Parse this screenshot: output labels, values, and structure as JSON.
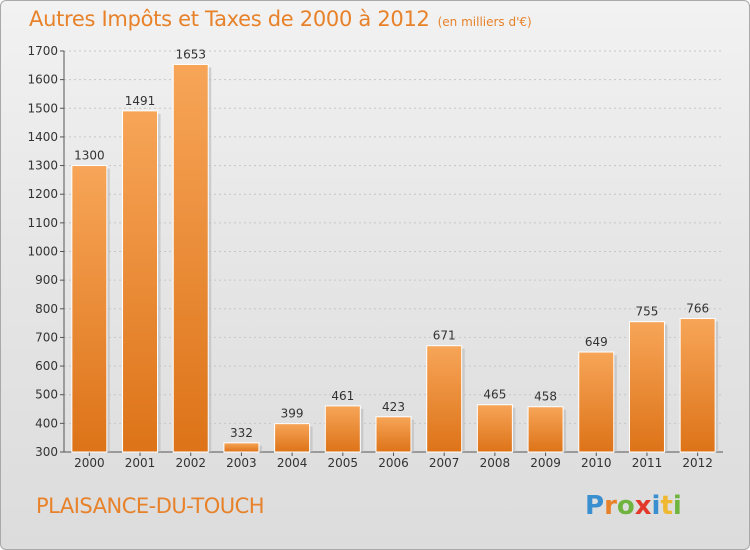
{
  "chart_data": {
    "type": "bar",
    "title": "Autres Impôts et Taxes de 2000 à 2012",
    "unit_label": "(en milliers d'€)",
    "categories": [
      "2000",
      "2001",
      "2002",
      "2003",
      "2004",
      "2005",
      "2006",
      "2007",
      "2008",
      "2009",
      "2010",
      "2011",
      "2012"
    ],
    "values": [
      1300,
      1491,
      1653,
      332,
      399,
      461,
      423,
      671,
      465,
      458,
      649,
      755,
      766
    ],
    "ylim": [
      300,
      1700
    ],
    "yticks": [
      300,
      400,
      500,
      600,
      700,
      800,
      900,
      1000,
      1100,
      1200,
      1300,
      1400,
      1500,
      1600,
      1700
    ],
    "grid": true,
    "bar_color": "#f0943c",
    "xlabel": "",
    "ylabel": ""
  },
  "footer": {
    "commune": "PLAISANCE-DU-TOUCH",
    "logo_text": "Proxiti",
    "logo_colors": [
      "#3a8fd0",
      "#e8822a",
      "#6fb43f",
      "#e2392b",
      "#3a8fd0",
      "#f0b830",
      "#6fb43f"
    ]
  }
}
